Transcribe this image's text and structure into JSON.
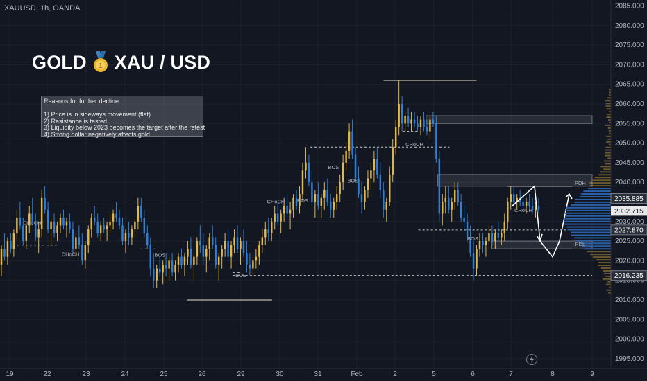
{
  "header": {
    "symbol": "XAUUSD, 1h, OANDA"
  },
  "title": {
    "left": "GOLD",
    "right": "XAU / USD",
    "icon": "medal-icon"
  },
  "reasons": {
    "heading": "Reasons for further decline:",
    "items": [
      "1) Price is in sideways movement (flat)",
      "2) Resistance is tested",
      "3) Liquidity below 2023 becomes the target after the retest",
      "4) Strong dollar negatively affects gold"
    ]
  },
  "colors": {
    "background": "#131722",
    "bull": "#e2b84a",
    "bear": "#2f7fd8",
    "axis_text": "#b2b5be",
    "grid": "#1e222d"
  },
  "chart_data": {
    "type": "candlestick",
    "x_ticks": [
      "19",
      "22",
      "23",
      "24",
      "25",
      "26",
      "29",
      "30",
      "31",
      "Feb",
      "2",
      "5",
      "6",
      "7",
      "8",
      "9"
    ],
    "y_ticks": [
      1995,
      2000,
      2005,
      2010,
      2015,
      2020,
      2025,
      2030,
      2035,
      2040,
      2045,
      2050,
      2055,
      2060,
      2065,
      2070,
      2075,
      2080,
      2085
    ],
    "ylim": [
      1992.5,
      2086.5
    ],
    "price_labels": [
      {
        "value": 2035.885,
        "text": "2035.885",
        "style": "dark"
      },
      {
        "value": 2032.715,
        "text": "2032.715",
        "style": "light"
      },
      {
        "value": 2027.87,
        "text": "2027.870",
        "style": "dark"
      },
      {
        "value": 2016.235,
        "text": "2016.235",
        "style": "dark"
      }
    ],
    "annotations": [
      {
        "text": "CHoCH",
        "x": 0.6,
        "y": 2029.2
      },
      {
        "text": "CHoCH",
        "x": 1.6,
        "y": 2021.2
      },
      {
        "text": "BOS",
        "x": 3.9,
        "y": 2021.0
      },
      {
        "text": "BOS",
        "x": 6.0,
        "y": 2015.8
      },
      {
        "text": "CHoCH",
        "x": 6.9,
        "y": 2034.6
      },
      {
        "text": "BOS",
        "x": 7.6,
        "y": 2034.9
      },
      {
        "text": "BOS",
        "x": 8.4,
        "y": 2043.4
      },
      {
        "text": "BOS",
        "x": 8.9,
        "y": 2039.9
      },
      {
        "text": "CHoCH",
        "x": 10.5,
        "y": 2049.2
      },
      {
        "text": "BOS",
        "x": 12.0,
        "y": 2025.2
      },
      {
        "text": "CHoCH",
        "x": 13.3,
        "y": 2032.4
      },
      {
        "text": "PDH",
        "x": 14.7,
        "y": 2039.3
      },
      {
        "text": "PDL",
        "x": 14.7,
        "y": 2023.8
      }
    ],
    "candles": [
      [
        2019,
        2024,
        2016,
        2023
      ],
      [
        2023,
        2027,
        2020,
        2021
      ],
      [
        2021,
        2026,
        2019,
        2025
      ],
      [
        2025,
        2027,
        2022,
        2023
      ],
      [
        2023,
        2028,
        2021,
        2027
      ],
      [
        2027,
        2033,
        2025,
        2031
      ],
      [
        2031,
        2035,
        2028,
        2029
      ],
      [
        2029,
        2031,
        2024,
        2025
      ],
      [
        2025,
        2030,
        2023,
        2029
      ],
      [
        2029,
        2034,
        2027,
        2032
      ],
      [
        2032,
        2036,
        2029,
        2030
      ],
      [
        2030,
        2032,
        2025,
        2026
      ],
      [
        2026,
        2030,
        2022,
        2028
      ],
      [
        2028,
        2038,
        2026,
        2036
      ],
      [
        2036,
        2039,
        2032,
        2033
      ],
      [
        2033,
        2035,
        2027,
        2028
      ],
      [
        2028,
        2031,
        2024,
        2030
      ],
      [
        2030,
        2032,
        2026,
        2027
      ],
      [
        2027,
        2030,
        2025,
        2029
      ],
      [
        2029,
        2032,
        2027,
        2031
      ],
      [
        2031,
        2033,
        2028,
        2029
      ],
      [
        2029,
        2031,
        2026,
        2030
      ],
      [
        2030,
        2032,
        2027,
        2028
      ],
      [
        2028,
        2030,
        2022,
        2023
      ],
      [
        2023,
        2027,
        2021,
        2026
      ],
      [
        2026,
        2029,
        2023,
        2024
      ],
      [
        2024,
        2027,
        2019,
        2020
      ],
      [
        2020,
        2025,
        2018,
        2024
      ],
      [
        2024,
        2029,
        2022,
        2028
      ],
      [
        2028,
        2032,
        2026,
        2031
      ],
      [
        2031,
        2034,
        2029,
        2030
      ],
      [
        2030,
        2032,
        2026,
        2027
      ],
      [
        2027,
        2030,
        2025,
        2029
      ],
      [
        2029,
        2031,
        2027,
        2028
      ],
      [
        2028,
        2030,
        2025,
        2029
      ],
      [
        2029,
        2032,
        2027,
        2030
      ],
      [
        2030,
        2033,
        2028,
        2032
      ],
      [
        2032,
        2035,
        2030,
        2031
      ],
      [
        2031,
        2033,
        2028,
        2029
      ],
      [
        2029,
        2031,
        2024,
        2025
      ],
      [
        2025,
        2028,
        2022,
        2027
      ],
      [
        2027,
        2030,
        2024,
        2026
      ],
      [
        2026,
        2029,
        2024,
        2028
      ],
      [
        2028,
        2031,
        2026,
        2030
      ],
      [
        2030,
        2036,
        2028,
        2034
      ],
      [
        2034,
        2036,
        2030,
        2031
      ],
      [
        2031,
        2033,
        2026,
        2027
      ],
      [
        2027,
        2029,
        2023,
        2024
      ],
      [
        2024,
        2026,
        2016,
        2018
      ],
      [
        2018,
        2022,
        2013,
        2015
      ],
      [
        2015,
        2019,
        2013,
        2018
      ],
      [
        2018,
        2021,
        2016,
        2017
      ],
      [
        2017,
        2020,
        2014,
        2019
      ],
      [
        2019,
        2022,
        2016,
        2018
      ],
      [
        2018,
        2021,
        2015,
        2020
      ],
      [
        2020,
        2022,
        2016,
        2017
      ],
      [
        2017,
        2020,
        2015,
        2019
      ],
      [
        2019,
        2022,
        2017,
        2021
      ],
      [
        2021,
        2023,
        2018,
        2019
      ],
      [
        2019,
        2022,
        2016,
        2021
      ],
      [
        2021,
        2025,
        2019,
        2023
      ],
      [
        2023,
        2026,
        2018,
        2019
      ],
      [
        2019,
        2022,
        2015,
        2021
      ],
      [
        2021,
        2026,
        2019,
        2025
      ],
      [
        2025,
        2029,
        2022,
        2024
      ],
      [
        2024,
        2027,
        2019,
        2021
      ],
      [
        2021,
        2024,
        2017,
        2023
      ],
      [
        2023,
        2027,
        2020,
        2026
      ],
      [
        2026,
        2029,
        2023,
        2024
      ],
      [
        2024,
        2026,
        2018,
        2019
      ],
      [
        2019,
        2022,
        2015,
        2021
      ],
      [
        2021,
        2024,
        2018,
        2023
      ],
      [
        2023,
        2027,
        2021,
        2025
      ],
      [
        2025,
        2028,
        2020,
        2021
      ],
      [
        2021,
        2025,
        2018,
        2024
      ],
      [
        2024,
        2028,
        2022,
        2026
      ],
      [
        2026,
        2029,
        2022,
        2023
      ],
      [
        2023,
        2026,
        2019,
        2025
      ],
      [
        2025,
        2028,
        2021,
        2022
      ],
      [
        2022,
        2025,
        2017,
        2019
      ],
      [
        2019,
        2022,
        2016,
        2018
      ],
      [
        2018,
        2021,
        2016,
        2020
      ],
      [
        2020,
        2023,
        2018,
        2021
      ],
      [
        2021,
        2025,
        2019,
        2024
      ],
      [
        2024,
        2028,
        2022,
        2026
      ],
      [
        2026,
        2030,
        2024,
        2028
      ],
      [
        2028,
        2031,
        2025,
        2027
      ],
      [
        2027,
        2031,
        2025,
        2030
      ],
      [
        2030,
        2034,
        2028,
        2032
      ],
      [
        2032,
        2035,
        2029,
        2030
      ],
      [
        2030,
        2033,
        2027,
        2032
      ],
      [
        2032,
        2036,
        2030,
        2034
      ],
      [
        2034,
        2037,
        2031,
        2032
      ],
      [
        2032,
        2035,
        2028,
        2033
      ],
      [
        2033,
        2037,
        2031,
        2036
      ],
      [
        2036,
        2038,
        2033,
        2034
      ],
      [
        2034,
        2039,
        2032,
        2037
      ],
      [
        2037,
        2045,
        2035,
        2043
      ],
      [
        2043,
        2049,
        2041,
        2045
      ],
      [
        2045,
        2047,
        2039,
        2040
      ],
      [
        2040,
        2043,
        2034,
        2035
      ],
      [
        2035,
        2038,
        2031,
        2037
      ],
      [
        2037,
        2040,
        2033,
        2034
      ],
      [
        2034,
        2037,
        2031,
        2036
      ],
      [
        2036,
        2040,
        2033,
        2038
      ],
      [
        2038,
        2041,
        2034,
        2035
      ],
      [
        2035,
        2037,
        2031,
        2033
      ],
      [
        2033,
        2036,
        2031,
        2035
      ],
      [
        2035,
        2039,
        2033,
        2037
      ],
      [
        2037,
        2042,
        2035,
        2040
      ],
      [
        2040,
        2047,
        2038,
        2045
      ],
      [
        2045,
        2050,
        2043,
        2048
      ],
      [
        2048,
        2055,
        2046,
        2053
      ],
      [
        2053,
        2056,
        2046,
        2047
      ],
      [
        2047,
        2049,
        2040,
        2041
      ],
      [
        2041,
        2044,
        2036,
        2037
      ],
      [
        2037,
        2040,
        2032,
        2035
      ],
      [
        2035,
        2039,
        2033,
        2038
      ],
      [
        2038,
        2043,
        2036,
        2041
      ],
      [
        2041,
        2045,
        2038,
        2043
      ],
      [
        2043,
        2048,
        2040,
        2046
      ],
      [
        2046,
        2049,
        2041,
        2042
      ],
      [
        2042,
        2045,
        2036,
        2038
      ],
      [
        2038,
        2040,
        2031,
        2033
      ],
      [
        2033,
        2036,
        2030,
        2035
      ],
      [
        2035,
        2044,
        2034,
        2042
      ],
      [
        2042,
        2051,
        2040,
        2049
      ],
      [
        2049,
        2056,
        2047,
        2054
      ],
      [
        2054,
        2066,
        2052,
        2060
      ],
      [
        2060,
        2062,
        2053,
        2055
      ],
      [
        2055,
        2058,
        2053,
        2057
      ],
      [
        2057,
        2059,
        2054,
        2055
      ],
      [
        2055,
        2058,
        2053,
        2056
      ],
      [
        2056,
        2058,
        2054,
        2055
      ],
      [
        2055,
        2057,
        2053,
        2054
      ],
      [
        2054,
        2057,
        2052,
        2056
      ],
      [
        2056,
        2058,
        2053,
        2054
      ],
      [
        2054,
        2056,
        2052,
        2053
      ],
      [
        2053,
        2057,
        2051,
        2056
      ],
      [
        2056,
        2058,
        2054,
        2055
      ],
      [
        2055,
        2057,
        2045,
        2046
      ],
      [
        2046,
        2048,
        2030,
        2032
      ],
      [
        2032,
        2037,
        2029,
        2035
      ],
      [
        2035,
        2039,
        2032,
        2036
      ],
      [
        2036,
        2039,
        2032,
        2033
      ],
      [
        2033,
        2036,
        2030,
        2035
      ],
      [
        2035,
        2040,
        2033,
        2038
      ],
      [
        2038,
        2040,
        2034,
        2035
      ],
      [
        2035,
        2037,
        2030,
        2031
      ],
      [
        2031,
        2034,
        2028,
        2030
      ],
      [
        2030,
        2032,
        2025,
        2026
      ],
      [
        2026,
        2029,
        2021,
        2022
      ],
      [
        2022,
        2025,
        2015,
        2018
      ],
      [
        2018,
        2024,
        2016,
        2023
      ],
      [
        2023,
        2027,
        2021,
        2025
      ],
      [
        2025,
        2027,
        2022,
        2024
      ],
      [
        2024,
        2026,
        2021,
        2025
      ],
      [
        2025,
        2029,
        2023,
        2027
      ],
      [
        2027,
        2029,
        2024,
        2025
      ],
      [
        2025,
        2028,
        2023,
        2027
      ],
      [
        2027,
        2030,
        2025,
        2026
      ],
      [
        2026,
        2028,
        2024,
        2027
      ],
      [
        2027,
        2032,
        2025,
        2030
      ],
      [
        2030,
        2036,
        2028,
        2035
      ],
      [
        2035,
        2039,
        2033,
        2037
      ],
      [
        2037,
        2039,
        2034,
        2035
      ],
      [
        2035,
        2037,
        2033,
        2036
      ],
      [
        2036,
        2038,
        2034,
        2035
      ],
      [
        2035,
        2037,
        2033,
        2034
      ],
      [
        2034,
        2036,
        2032,
        2035
      ],
      [
        2035,
        2037,
        2033,
        2034
      ],
      [
        2034,
        2036,
        2032,
        2033
      ],
      [
        2033,
        2035,
        2031,
        2034
      ],
      [
        2034,
        2036,
        2032,
        2033
      ]
    ]
  }
}
